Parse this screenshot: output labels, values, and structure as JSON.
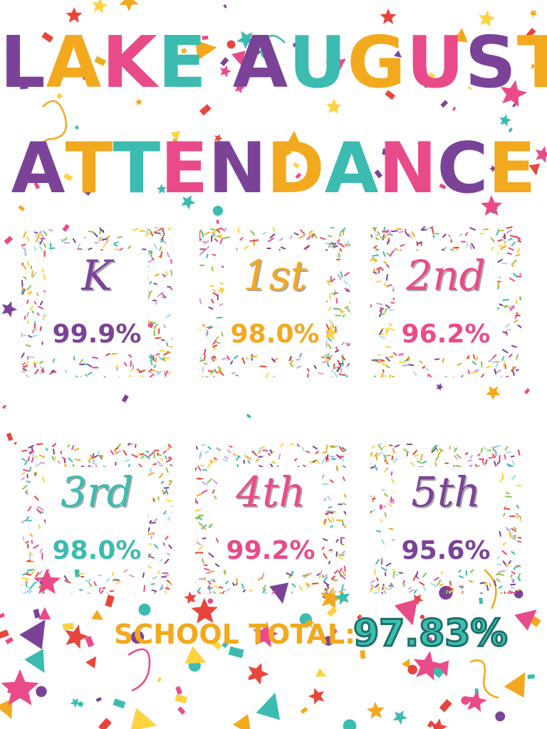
{
  "title": {
    "line1": "LAKE AUGUST",
    "line2": "ATTENDANCE",
    "line1_colors": [
      "#7b4397",
      "#f2a91e",
      "#e94b8a",
      "#3cbcb0",
      "#7b4397",
      "#3cbcb0",
      "#f2a91e",
      "#e94b8a",
      "#7b4397",
      "#f2a91e",
      "#f2a91e"
    ],
    "line2_colors": [
      "#7b4397",
      "#f2a91e",
      "#3cbcb0",
      "#e94b8a",
      "#7b4397",
      "#f2a91e",
      "#3cbcb0",
      "#e94b8a",
      "#7b4397",
      "#f2a91e"
    ]
  },
  "grades": [
    {
      "label": "K",
      "percent": "99.9%",
      "color": "#7b4397"
    },
    {
      "label": "1st",
      "percent": "98.0%",
      "color": "#f2a91e"
    },
    {
      "label": "2nd",
      "percent": "96.2%",
      "color": "#e94b8a"
    },
    {
      "label": "3rd",
      "percent": "98.0%",
      "color": "#3cbcb0"
    },
    {
      "label": "4th",
      "percent": "99.2%",
      "color": "#e94b8a"
    },
    {
      "label": "5th",
      "percent": "95.6%",
      "color": "#7b4397"
    }
  ],
  "school_total": {
    "label": "SCHOOL TOTAL:",
    "value": "97.83%",
    "label_color": "#f2a91e"
  },
  "palette": [
    "#7b4397",
    "#f2a91e",
    "#e94b8a",
    "#3cbcb0",
    "#e8453c",
    "#ffd23f"
  ]
}
